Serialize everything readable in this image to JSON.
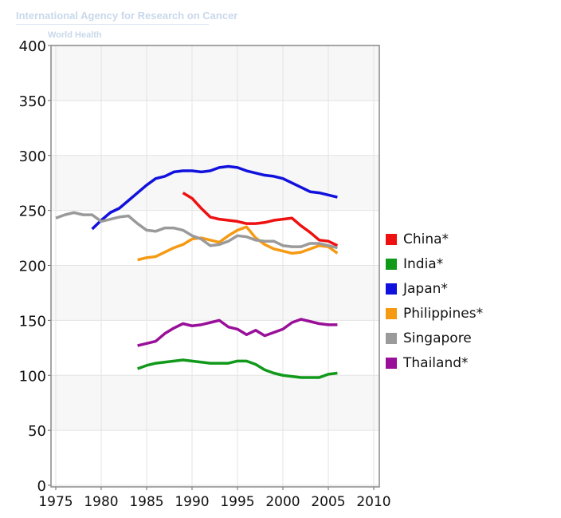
{
  "watermark": {
    "line1": "International Agency for Research on Cancer",
    "line2": "World Health"
  },
  "chart_data": {
    "type": "line",
    "title": "",
    "xlabel": "",
    "ylabel": "",
    "xlim": [
      1974.5,
      2011
    ],
    "ylim": [
      0,
      400
    ],
    "xticks": [
      1975,
      1980,
      1985,
      1990,
      1995,
      2000,
      2005,
      2010
    ],
    "yticks": [
      0,
      50,
      100,
      150,
      200,
      250,
      300,
      350,
      400
    ],
    "grid": true,
    "legend_position": "right",
    "series": [
      {
        "name": "China*",
        "color": "#ee1111",
        "start": 1989,
        "values": [
          266,
          261,
          252,
          244,
          242,
          241,
          240,
          238,
          238,
          239,
          241,
          242,
          243,
          236,
          230,
          223,
          222,
          218
        ]
      },
      {
        "name": "India*",
        "color": "#11991a",
        "start": 1984,
        "values": [
          106,
          109,
          111,
          112,
          113,
          114,
          113,
          112,
          111,
          111,
          111,
          113,
          113,
          110,
          105,
          102,
          100,
          99,
          98,
          98,
          98,
          101,
          102
        ]
      },
      {
        "name": "Japan*",
        "color": "#1111dd",
        "start": 1979,
        "values": [
          233,
          241,
          248,
          252,
          259,
          266,
          273,
          279,
          281,
          285,
          286,
          286,
          285,
          286,
          289,
          290,
          289,
          286,
          284,
          282,
          281,
          279,
          275,
          271,
          267,
          266,
          264,
          262
        ]
      },
      {
        "name": "Philippines*",
        "color": "#f59a12",
        "start": 1984,
        "values": [
          205,
          207,
          208,
          212,
          216,
          219,
          224,
          225,
          223,
          221,
          227,
          232,
          235,
          225,
          219,
          215,
          213,
          211,
          212,
          215,
          218,
          217,
          211
        ]
      },
      {
        "name": "Singapore",
        "color": "#9a9a9a",
        "start": 1975,
        "values": [
          243,
          246,
          248,
          246,
          246,
          240,
          242,
          244,
          245,
          238,
          232,
          231,
          234,
          234,
          232,
          227,
          224,
          218,
          219,
          222,
          227,
          226,
          223,
          222,
          222,
          218,
          217,
          217,
          220,
          220,
          218,
          216
        ]
      },
      {
        "name": "Thailand*",
        "color": "#990f99",
        "start": 1984,
        "values": [
          127,
          129,
          131,
          138,
          143,
          147,
          145,
          146,
          148,
          150,
          144,
          142,
          137,
          141,
          136,
          139,
          142,
          148,
          151,
          149,
          147,
          146,
          146
        ]
      }
    ]
  }
}
